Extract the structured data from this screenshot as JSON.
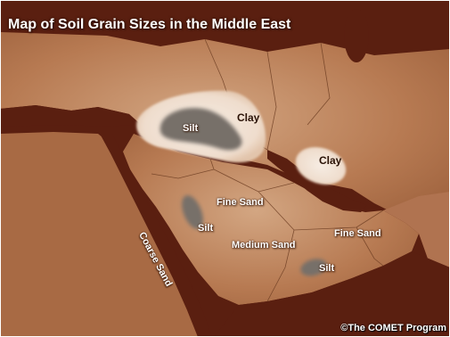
{
  "map": {
    "title": "Map of Soil Grain Sizes in the Middle East",
    "credit": "©The COMET Program",
    "colors": {
      "sea": "#5a1f10",
      "land": "#b77a52",
      "land_highlight": "#c99a72",
      "clay": "#f1e3d6",
      "silt": "#777069",
      "border": "#6d3d22"
    },
    "labels": {
      "clay_north": "Clay",
      "silt_north": "Silt",
      "clay_gulf": "Clay",
      "fine_sand_center": "Fine Sand",
      "silt_center": "Silt",
      "coarse_sand": "Coarse Sand",
      "medium_sand": "Medium Sand",
      "fine_sand_east": "Fine Sand",
      "silt_south": "Silt"
    }
  }
}
